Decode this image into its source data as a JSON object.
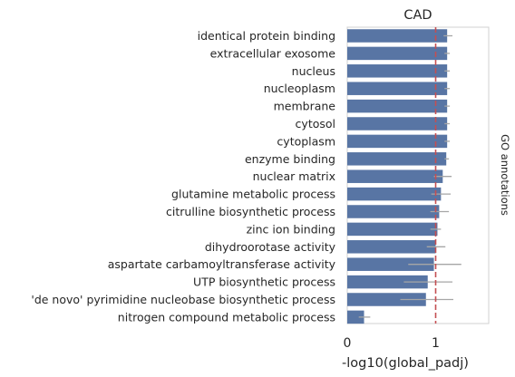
{
  "chart_data": {
    "type": "bar",
    "orientation": "horizontal",
    "title": "CAD",
    "xlabel": "-log10(global_padj)",
    "ylabel": "",
    "facet_label": "GO annotations",
    "xlim": [
      0,
      1.6
    ],
    "xticks": [
      0,
      1
    ],
    "reference_line": {
      "x": 1.0,
      "color": "#c44e52",
      "style": "dashed"
    },
    "bar_color": "#5875a4",
    "errorbar_color": "#a6a6a6",
    "categories": [
      "identical protein binding",
      "extracellular exosome",
      "nucleus",
      "nucleoplasm",
      "membrane",
      "cytosol",
      "cytoplasm",
      "enzyme binding",
      "nuclear matrix",
      "glutamine metabolic process",
      "citrulline biosynthetic process",
      "zinc ion binding",
      "dihydroorotase activity",
      "aspartate carbamoyltransferase activity",
      "UTP biosynthetic process",
      "'de novo' pyrimidine nucleobase biosynthetic process",
      "nitrogen compound metabolic process"
    ],
    "values": [
      1.13,
      1.13,
      1.13,
      1.13,
      1.13,
      1.13,
      1.13,
      1.12,
      1.08,
      1.06,
      1.04,
      1.02,
      1.0,
      0.98,
      0.91,
      0.89,
      0.19
    ],
    "err_low": [
      1.09,
      1.1,
      1.1,
      1.1,
      1.1,
      1.1,
      1.1,
      1.1,
      0.98,
      0.95,
      0.94,
      0.94,
      0.9,
      0.69,
      0.64,
      0.6,
      0.13
    ],
    "err_high": [
      1.19,
      1.16,
      1.16,
      1.16,
      1.16,
      1.16,
      1.16,
      1.15,
      1.18,
      1.17,
      1.15,
      1.06,
      1.11,
      1.29,
      1.19,
      1.2,
      0.26
    ]
  }
}
